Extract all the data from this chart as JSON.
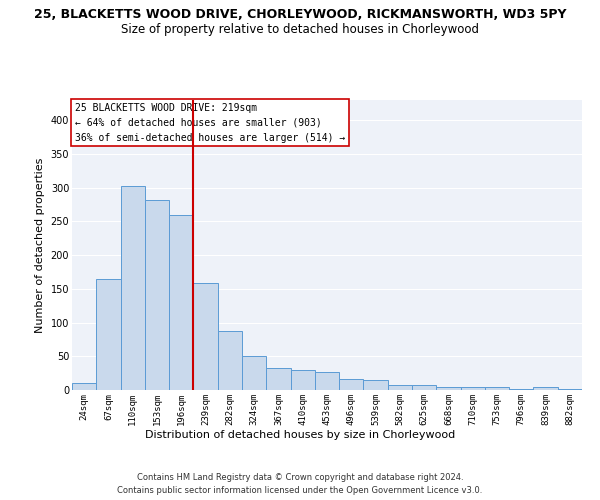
{
  "title_line1": "25, BLACKETTS WOOD DRIVE, CHORLEYWOOD, RICKMANSWORTH, WD3 5PY",
  "title_line2": "Size of property relative to detached houses in Chorleywood",
  "xlabel": "Distribution of detached houses by size in Chorleywood",
  "ylabel": "Number of detached properties",
  "categories": [
    "24sqm",
    "67sqm",
    "110sqm",
    "153sqm",
    "196sqm",
    "239sqm",
    "282sqm",
    "324sqm",
    "367sqm",
    "410sqm",
    "453sqm",
    "496sqm",
    "539sqm",
    "582sqm",
    "625sqm",
    "668sqm",
    "710sqm",
    "753sqm",
    "796sqm",
    "839sqm",
    "882sqm"
  ],
  "values": [
    10,
    165,
    303,
    282,
    259,
    159,
    88,
    50,
    32,
    29,
    26,
    16,
    15,
    8,
    7,
    5,
    4,
    4,
    2,
    4,
    2
  ],
  "bar_color": "#c9d9ec",
  "bar_edge_color": "#5b9bd5",
  "vline_color": "#cc0000",
  "vline_x_index": 4,
  "annotation_text": "25 BLACKETTS WOOD DRIVE: 219sqm\n← 64% of detached houses are smaller (903)\n36% of semi-detached houses are larger (514) →",
  "annotation_box_color": "white",
  "annotation_box_edge": "#cc0000",
  "ylim": [
    0,
    430
  ],
  "yticks": [
    0,
    50,
    100,
    150,
    200,
    250,
    300,
    350,
    400
  ],
  "background_color": "#eef2f9",
  "grid_color": "white",
  "footer_line1": "Contains HM Land Registry data © Crown copyright and database right 2024.",
  "footer_line2": "Contains public sector information licensed under the Open Government Licence v3.0.",
  "title_fontsize": 9,
  "subtitle_fontsize": 8.5,
  "xlabel_fontsize": 8,
  "ylabel_fontsize": 8,
  "tick_fontsize": 6.5,
  "annotation_fontsize": 7,
  "footer_fontsize": 6
}
